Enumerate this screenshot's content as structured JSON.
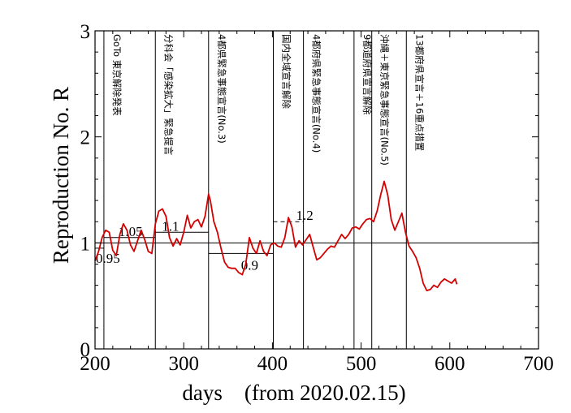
{
  "chart_data": {
    "type": "line",
    "xlabel": "days　(from 2020.02.15)",
    "ylabel": "Reproduction No.  R",
    "xlim": [
      200,
      700
    ],
    "ylim": [
      0,
      3
    ],
    "x_ticks": [
      "200",
      "300",
      "400",
      "500",
      "600",
      "700"
    ],
    "y_ticks": [
      "0",
      "1",
      "2",
      "3"
    ],
    "grid": false,
    "reference_line": 1,
    "series_color": "#d40000",
    "series": [
      {
        "x": [
          200,
          204,
          208,
          212,
          216,
          220,
          224,
          228,
          232,
          236,
          240,
          244,
          248,
          252,
          256,
          260,
          264,
          268,
          272,
          276,
          280,
          284,
          288,
          292,
          296,
          300,
          304,
          308,
          312,
          316,
          320,
          324,
          328,
          330,
          334,
          338,
          342,
          346,
          350,
          354,
          358,
          362,
          366,
          370,
          374,
          378,
          382,
          386,
          390,
          394,
          398,
          402,
          406,
          410,
          414,
          418,
          422,
          426,
          430,
          434,
          438,
          442,
          446,
          450,
          454,
          458,
          462,
          466,
          470,
          474,
          478,
          482,
          486,
          490,
          494,
          498,
          502,
          506,
          510,
          514,
          518,
          522,
          526,
          530,
          534,
          538,
          542,
          546,
          550,
          554,
          558,
          562,
          566,
          570,
          574,
          578,
          582,
          586,
          590,
          594,
          598,
          602,
          606,
          608
        ],
        "y": [
          0.83,
          0.92,
          1.05,
          1.12,
          1.1,
          0.93,
          0.88,
          1.08,
          1.18,
          1.12,
          0.98,
          0.92,
          1.02,
          1.12,
          1.03,
          0.92,
          0.9,
          1.18,
          1.3,
          1.32,
          1.25,
          1.05,
          0.97,
          1.04,
          0.98,
          1.1,
          1.26,
          1.14,
          1.2,
          1.22,
          1.15,
          1.25,
          1.46,
          1.4,
          1.2,
          1.1,
          0.95,
          0.82,
          0.77,
          0.76,
          0.76,
          0.72,
          0.7,
          0.8,
          1.05,
          0.95,
          0.9,
          1.02,
          0.92,
          0.88,
          0.98,
          1.0,
          0.97,
          0.96,
          1.05,
          1.24,
          1.15,
          0.96,
          1.02,
          0.98,
          1.03,
          1.08,
          0.96,
          0.84,
          0.86,
          0.9,
          0.94,
          0.97,
          0.96,
          1.02,
          1.08,
          1.04,
          1.08,
          1.14,
          1.15,
          1.13,
          1.18,
          1.22,
          1.23,
          1.2,
          1.3,
          1.45,
          1.58,
          1.45,
          1.22,
          1.12,
          1.2,
          1.28,
          1.1,
          0.97,
          0.92,
          0.86,
          0.76,
          0.62,
          0.55,
          0.56,
          0.6,
          0.58,
          0.63,
          0.66,
          0.64,
          0.62,
          0.66,
          0.61
        ]
      }
    ],
    "events": [
      {
        "x": 210,
        "label": "GoTo 東京解除発表"
      },
      {
        "x": 268,
        "label": "分科会「感染拡大」緊急提言"
      },
      {
        "x": 328,
        "label": "4都県緊急事態宣言(No.3)"
      },
      {
        "x": 401,
        "label": "国内全域宣言解除"
      },
      {
        "x": 435,
        "label": "4都府県緊急事態宣言(No.4)"
      },
      {
        "x": 492,
        "label": "9都道府県宣言解除"
      },
      {
        "x": 512,
        "label": "沖縄＋東京緊急事態宣言(No.5)"
      },
      {
        "x": 551,
        "label": "13都府県宣言＋16重点措置"
      }
    ],
    "levels": [
      {
        "x_start": 210,
        "x_end": 268,
        "y": 1.05,
        "label": "1.05",
        "dashed": false
      },
      {
        "x_start": 268,
        "x_end": 328,
        "y": 1.1,
        "label": "1.1",
        "dashed": false
      },
      {
        "x_start": 200,
        "x_end": 210,
        "y": 0.95,
        "label": "0.95",
        "dashed": false
      },
      {
        "x_start": 328,
        "x_end": 401,
        "y": 0.9,
        "label": "0.9",
        "dashed": false
      },
      {
        "x_start": 401,
        "x_end": 435,
        "y": 1.2,
        "label": "1.2",
        "dashed": true
      }
    ]
  }
}
